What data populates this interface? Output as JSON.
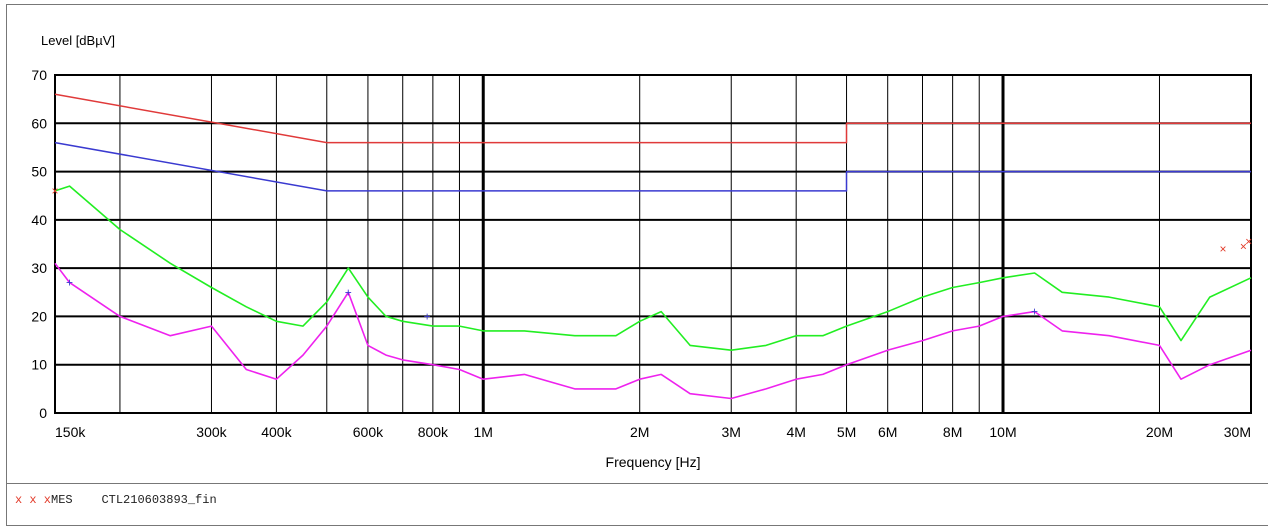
{
  "chart_data": {
    "type": "line",
    "title": "",
    "ylabel": "Level [dBµV]",
    "xlabel": "Frequency [Hz]",
    "x_scale": "log",
    "xlim_hz": [
      150000,
      30000000
    ],
    "ylim": [
      0,
      70
    ],
    "y_ticks": [
      0,
      10,
      20,
      30,
      40,
      50,
      60,
      70
    ],
    "x_ticks": [
      {
        "hz": 150000,
        "label": "150k"
      },
      {
        "hz": 300000,
        "label": "300k"
      },
      {
        "hz": 400000,
        "label": "400k"
      },
      {
        "hz": 600000,
        "label": "600k"
      },
      {
        "hz": 800000,
        "label": "800k"
      },
      {
        "hz": 1000000,
        "label": "1M"
      },
      {
        "hz": 2000000,
        "label": "2M"
      },
      {
        "hz": 3000000,
        "label": "3M"
      },
      {
        "hz": 4000000,
        "label": "4M"
      },
      {
        "hz": 5000000,
        "label": "5M"
      },
      {
        "hz": 6000000,
        "label": "6M"
      },
      {
        "hz": 8000000,
        "label": "8M"
      },
      {
        "hz": 10000000,
        "label": "10M"
      },
      {
        "hz": 20000000,
        "label": "20M"
      },
      {
        "hz": 30000000,
        "label": "30M"
      }
    ],
    "minor_grid_hz": [
      150000,
      200000,
      300000,
      400000,
      500000,
      600000,
      700000,
      800000,
      900000,
      1000000,
      2000000,
      3000000,
      4000000,
      5000000,
      6000000,
      7000000,
      8000000,
      9000000,
      10000000,
      20000000,
      30000000
    ],
    "grid": true,
    "series": [
      {
        "color": "#e03a3a",
        "x": [
          150000,
          500000,
          500000,
          5000000,
          5000000,
          30000000
        ],
        "values": [
          66,
          56,
          56,
          56,
          60,
          60
        ]
      },
      {
        "color": "#3a3ad0",
        "x": [
          150000,
          500000,
          500000,
          5000000,
          5000000,
          30000000
        ],
        "values": [
          56,
          46,
          46,
          46,
          50,
          50
        ]
      },
      {
        "color": "#22ee22",
        "x": [
          150000,
          160000,
          200000,
          250000,
          300000,
          350000,
          400000,
          450000,
          500000,
          550000,
          600000,
          650000,
          700000,
          800000,
          900000,
          1000000,
          1200000,
          1500000,
          1800000,
          2000000,
          2200000,
          2500000,
          3000000,
          3500000,
          4000000,
          4500000,
          5000000,
          6000000,
          7000000,
          8000000,
          9000000,
          10000000,
          11500000,
          13000000,
          16000000,
          20000000,
          22000000,
          25000000,
          30000000
        ],
        "values": [
          46,
          47,
          38,
          31,
          26,
          22,
          19,
          18,
          23,
          30,
          24,
          20,
          19,
          18,
          18,
          17,
          17,
          16,
          16,
          19,
          21,
          14,
          13,
          14,
          16,
          16,
          18,
          21,
          24,
          26,
          27,
          28,
          29,
          25,
          24,
          22,
          15,
          24,
          28
        ]
      },
      {
        "color": "#ee22ee",
        "x": [
          150000,
          160000,
          200000,
          250000,
          300000,
          350000,
          400000,
          450000,
          500000,
          550000,
          600000,
          650000,
          700000,
          800000,
          900000,
          1000000,
          1200000,
          1500000,
          1800000,
          2000000,
          2200000,
          2500000,
          3000000,
          3500000,
          4000000,
          4500000,
          5000000,
          6000000,
          7000000,
          8000000,
          9000000,
          10000000,
          11500000,
          13000000,
          16000000,
          20000000,
          22000000,
          25000000,
          30000000
        ],
        "values": [
          31,
          27,
          20,
          16,
          18,
          9,
          7,
          12,
          18,
          25,
          14,
          12,
          11,
          10,
          9,
          7,
          8,
          5,
          5,
          7,
          8,
          4,
          3,
          5,
          7,
          8,
          10,
          13,
          15,
          17,
          18,
          20,
          21,
          17,
          16,
          14,
          7,
          10,
          13
        ]
      }
    ],
    "markers": {
      "final_x": [
        {
          "hz": 150000,
          "value": 46
        },
        {
          "hz": 26500000,
          "value": 34
        },
        {
          "hz": 29000000,
          "value": 34.5
        },
        {
          "hz": 29700000,
          "value": 35.5
        }
      ],
      "avg_plus": [
        {
          "hz": 160000,
          "value": 27
        },
        {
          "hz": 550000,
          "value": 25
        },
        {
          "hz": 780000,
          "value": 20
        },
        {
          "hz": 11500000,
          "value": 21
        }
      ]
    }
  },
  "footer": {
    "marker_symbols": "x x x",
    "label": "MES",
    "name": "CTL210603893_fin"
  },
  "colors": {
    "background": "#ffffff",
    "grid": "#000000",
    "limit_qp": "#e03a3a",
    "limit_avg": "#3a3ad0",
    "peak": "#22ee22",
    "average": "#ee22ee",
    "marker": "#e23b2a"
  }
}
